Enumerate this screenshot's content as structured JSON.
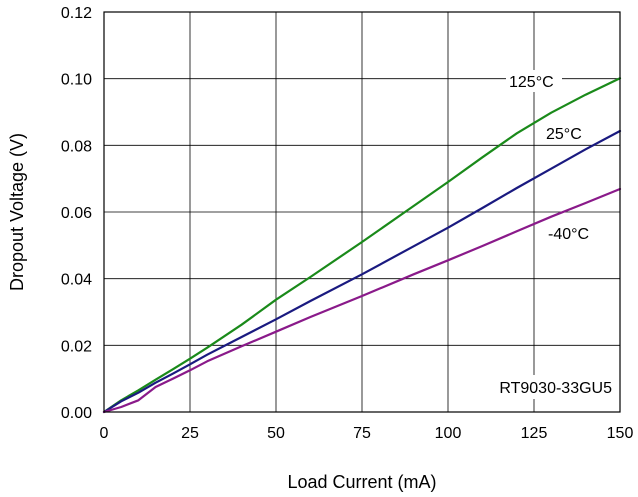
{
  "chart_data": {
    "type": "line",
    "title": "",
    "xlabel": "Load Current (mA)",
    "ylabel": "Dropout Voltage (V)",
    "xlim": [
      0,
      150
    ],
    "ylim": [
      0,
      0.12
    ],
    "x_ticks": [
      0,
      25,
      50,
      75,
      100,
      125,
      150
    ],
    "x_tick_labels": [
      "0",
      "25",
      "50",
      "75",
      "100",
      "125",
      "150"
    ],
    "y_ticks": [
      0,
      0.02,
      0.04,
      0.06,
      0.08,
      0.1,
      0.12
    ],
    "y_tick_labels": [
      "0.00",
      "0.02",
      "0.04",
      "0.06",
      "0.08",
      "0.10",
      "0.12"
    ],
    "grid": true,
    "series": [
      {
        "name": "125°C",
        "color": "#1a8a1a",
        "x": [
          0,
          5,
          10,
          15,
          20,
          25,
          30,
          40,
          50,
          60,
          75,
          90,
          100,
          110,
          120,
          130,
          140,
          150
        ],
        "y": [
          0,
          0.0035,
          0.0065,
          0.0097,
          0.0128,
          0.016,
          0.0193,
          0.0262,
          0.0337,
          0.0405,
          0.051,
          0.0618,
          0.069,
          0.0764,
          0.0836,
          0.0898,
          0.0952,
          0.1001
        ]
      },
      {
        "name": "25°C",
        "color": "#1a1a80",
        "x": [
          0,
          5,
          10,
          15,
          20,
          25,
          30,
          40,
          50,
          60,
          75,
          90,
          100,
          110,
          120,
          130,
          140,
          150
        ],
        "y": [
          0,
          0.0032,
          0.0058,
          0.0088,
          0.0115,
          0.0143,
          0.0172,
          0.0225,
          0.0278,
          0.0333,
          0.0413,
          0.0497,
          0.0553,
          0.0612,
          0.0672,
          0.073,
          0.0788,
          0.0843
        ]
      },
      {
        "name": "-40°C",
        "color": "#8a1a8a",
        "x": [
          0,
          5,
          10,
          15,
          20,
          25,
          30,
          40,
          50,
          60,
          75,
          90,
          100,
          110,
          120,
          130,
          140,
          150
        ],
        "y": [
          0,
          0.0015,
          0.0035,
          0.0075,
          0.01,
          0.0125,
          0.0152,
          0.0197,
          0.0241,
          0.0285,
          0.0348,
          0.0413,
          0.0455,
          0.0498,
          0.0542,
          0.0586,
          0.0627,
          0.0669
        ]
      }
    ],
    "annotations": [
      "125°C",
      "25°C",
      "-40°C"
    ],
    "watermark_label": "RT9030-33GU5"
  }
}
